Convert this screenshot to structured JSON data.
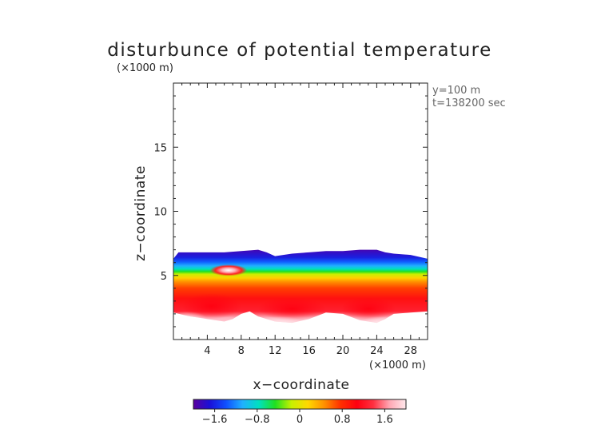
{
  "chart_data": {
    "type": "heatmap",
    "title": "disturbunce of potential temperature",
    "xlabel": "x−coordinate",
    "ylabel": "z−coordinate",
    "x_unit": "(×1000 m)",
    "y_unit": "(×1000 m)",
    "xlim": [
      0,
      30
    ],
    "ylim": [
      0,
      20
    ],
    "x_ticks": [
      4,
      8,
      12,
      16,
      20,
      24,
      28
    ],
    "y_ticks": [
      5,
      10,
      15
    ],
    "annotations": [
      "y=100 m",
      "t=138200 sec"
    ],
    "colorbar": {
      "vmin": -2,
      "vmax": 2,
      "ticks": [
        -1.6,
        -0.8,
        0,
        0.8,
        1.6
      ],
      "tick_labels": [
        "−1.6",
        "−0.8",
        "0",
        "0.8",
        "1.6"
      ],
      "colors": [
        "#5a009e",
        "#1a10d8",
        "#1050ff",
        "#20b0ff",
        "#00e0c0",
        "#20e020",
        "#c8f000",
        "#ffd800",
        "#ff9000",
        "#ff3000",
        "#ff0010",
        "#ff3040",
        "#ffa8b4",
        "#ffe8ec"
      ]
    },
    "field": {
      "top_boundary": [
        [
          0.6,
          6.8
        ],
        [
          2,
          6.8
        ],
        [
          4,
          6.8
        ],
        [
          6,
          6.8
        ],
        [
          8,
          6.9
        ],
        [
          10,
          7.0
        ],
        [
          11,
          6.8
        ],
        [
          12,
          6.5
        ],
        [
          14,
          6.7
        ],
        [
          16,
          6.8
        ],
        [
          18,
          6.9
        ],
        [
          20,
          6.9
        ],
        [
          22,
          7.0
        ],
        [
          24,
          7.0
        ],
        [
          25,
          6.8
        ],
        [
          26,
          6.7
        ],
        [
          28,
          6.6
        ],
        [
          30,
          6.3
        ]
      ],
      "bottom_boundary": [
        [
          0,
          2.1
        ],
        [
          2,
          1.8
        ],
        [
          4,
          1.6
        ],
        [
          6,
          1.4
        ],
        [
          7,
          1.6
        ],
        [
          8,
          2.0
        ],
        [
          9,
          2.2
        ],
        [
          10,
          1.8
        ],
        [
          12,
          1.4
        ],
        [
          14,
          1.3
        ],
        [
          16,
          1.6
        ],
        [
          18,
          2.1
        ],
        [
          20,
          2.0
        ],
        [
          22,
          1.5
        ],
        [
          24,
          1.3
        ],
        [
          25,
          1.6
        ],
        [
          26,
          2.0
        ],
        [
          28,
          2.1
        ],
        [
          30,
          2.2
        ]
      ],
      "zero_line": [
        [
          0,
          5.3
        ],
        [
          2,
          5.4
        ],
        [
          4,
          5.3
        ],
        [
          6,
          5.2
        ],
        [
          8,
          5.4
        ],
        [
          10,
          5.6
        ],
        [
          12,
          5.6
        ],
        [
          14,
          5.5
        ],
        [
          16,
          5.4
        ],
        [
          18,
          5.3
        ],
        [
          20,
          5.3
        ],
        [
          22,
          5.4
        ],
        [
          24,
          5.4
        ],
        [
          26,
          5.2
        ],
        [
          28,
          5.0
        ],
        [
          30,
          4.9
        ]
      ],
      "min_value": -1.8,
      "min_location": [
        12,
        6.6
      ],
      "max_value": 1.8,
      "max_location": [
        14,
        2.2
      ],
      "warm_tongue_center": [
        6.5,
        5.4
      ]
    }
  }
}
